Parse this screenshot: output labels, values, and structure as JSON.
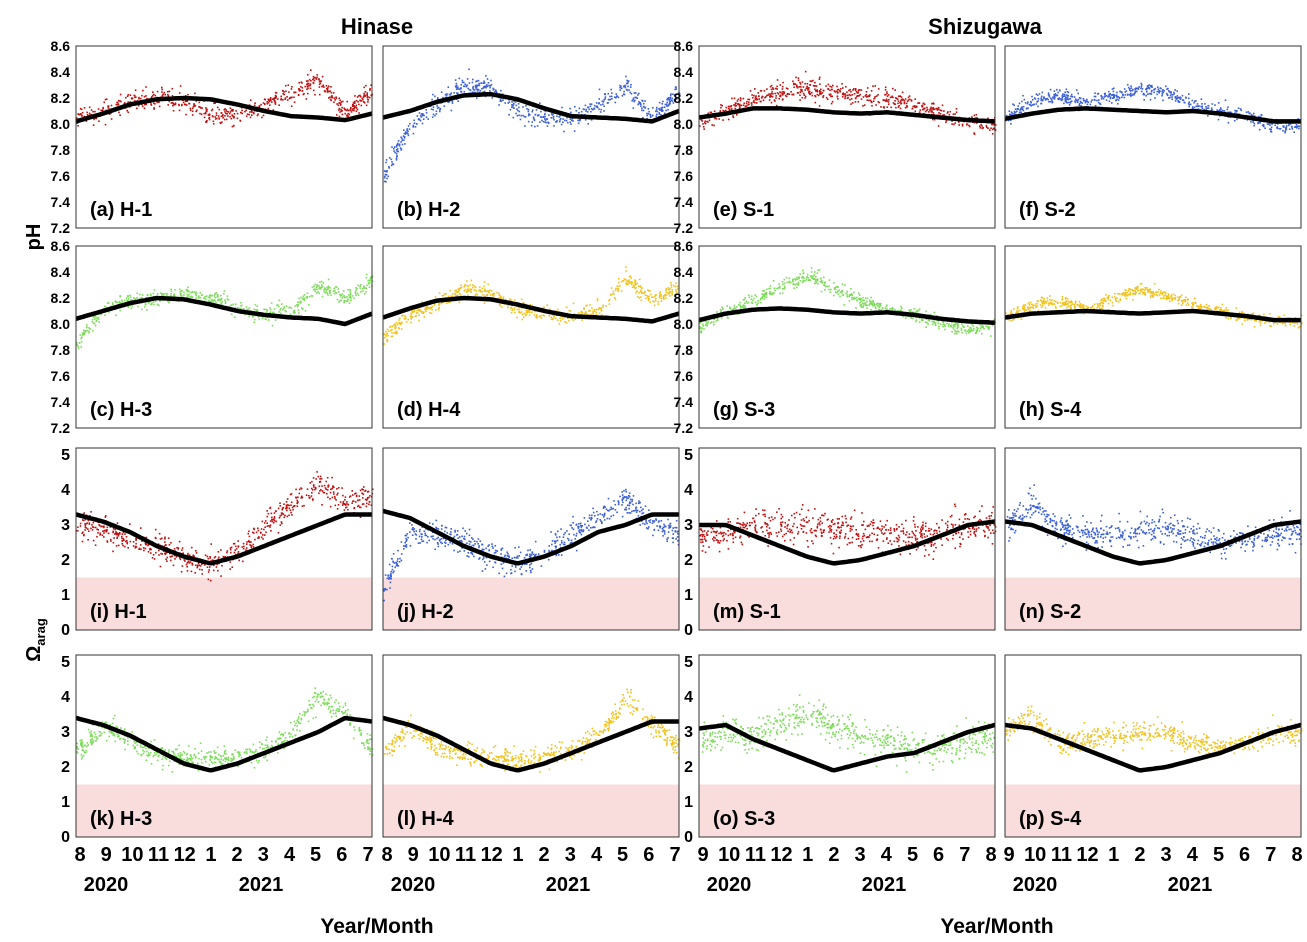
{
  "titles": {
    "hinase": "Hinase",
    "shizugawa": "Shizugawa"
  },
  "ylabels": {
    "ph": "pH",
    "omega_main": "Ω",
    "omega_sub": "arag"
  },
  "xlabel": "Year/Month",
  "colors": {
    "red": "#c01010",
    "blue": "#3a5fd8",
    "green": "#7ddc5a",
    "yellow": "#f2c21a",
    "black": "#000000",
    "undersat": "#f9dcdc"
  },
  "chart_data": {
    "type": "scatter",
    "ph_ylim": [
      7.2,
      8.6
    ],
    "ph_yticks": [
      "7.2",
      "7.4",
      "7.6",
      "7.8",
      "8.0",
      "8.2",
      "8.4",
      "8.6"
    ],
    "omega_ylim": [
      0,
      5.2
    ],
    "omega_yticks": [
      "0",
      "1",
      "2",
      "3",
      "4",
      "5"
    ],
    "undersaturation_threshold": 1.5,
    "hinase_xticks": {
      "months": [
        "8",
        "9",
        "10",
        "11",
        "12",
        "1",
        "2",
        "3",
        "4",
        "5",
        "6",
        "7"
      ],
      "years": [
        "2020",
        "2021"
      ]
    },
    "shizugawa_xticks": {
      "months": [
        "9",
        "10",
        "11",
        "12",
        "1",
        "2",
        "3",
        "4",
        "5",
        "6",
        "7",
        "8"
      ],
      "years": [
        "2020",
        "2021"
      ]
    },
    "panels": [
      {
        "label": "(a) H-1",
        "site": "H-1",
        "var": "pH",
        "color": "red",
        "climatology": [
          8.02,
          8.08,
          8.15,
          8.19,
          8.2,
          8.19,
          8.15,
          8.1,
          8.06,
          8.05,
          8.03,
          8.08
        ],
        "observed": [
          8.05,
          8.1,
          8.17,
          8.2,
          8.18,
          8.07,
          8.08,
          8.15,
          8.25,
          8.35,
          8.1,
          8.25
        ],
        "spread": 0.1
      },
      {
        "label": "(b) H-2",
        "site": "H-2",
        "var": "pH",
        "color": "blue",
        "climatology": [
          8.05,
          8.1,
          8.17,
          8.22,
          8.23,
          8.19,
          8.12,
          8.06,
          8.05,
          8.04,
          8.02,
          8.1
        ],
        "observed": [
          7.6,
          8.0,
          8.15,
          8.3,
          8.28,
          8.1,
          8.05,
          8.05,
          8.15,
          8.3,
          8.05,
          8.25
        ],
        "spread": 0.1
      },
      {
        "label": "(c) H-3",
        "site": "H-3",
        "var": "pH",
        "color": "green",
        "climatology": [
          8.04,
          8.1,
          8.16,
          8.2,
          8.19,
          8.15,
          8.1,
          8.07,
          8.05,
          8.04,
          8.0,
          8.08
        ],
        "observed": [
          7.85,
          8.12,
          8.18,
          8.2,
          8.24,
          8.2,
          8.12,
          8.08,
          8.1,
          8.3,
          8.2,
          8.35
        ],
        "spread": 0.08
      },
      {
        "label": "(d) H-4",
        "site": "H-4",
        "var": "pH",
        "color": "yellow",
        "climatology": [
          8.05,
          8.12,
          8.18,
          8.2,
          8.19,
          8.15,
          8.1,
          8.06,
          8.05,
          8.04,
          8.02,
          8.08
        ],
        "observed": [
          7.9,
          8.08,
          8.15,
          8.28,
          8.25,
          8.12,
          8.08,
          8.07,
          8.1,
          8.35,
          8.2,
          8.3
        ],
        "spread": 0.08
      },
      {
        "label": "(e) S-1",
        "site": "S-1",
        "var": "pH",
        "color": "red",
        "climatology": [
          8.05,
          8.08,
          8.12,
          8.12,
          8.11,
          8.09,
          8.08,
          8.09,
          8.07,
          8.05,
          8.03,
          8.02
        ],
        "observed": [
          8.02,
          8.1,
          8.2,
          8.25,
          8.28,
          8.25,
          8.22,
          8.2,
          8.15,
          8.08,
          8.02,
          8.0
        ],
        "spread": 0.1
      },
      {
        "label": "(f) S-2",
        "site": "S-2",
        "var": "pH",
        "color": "blue",
        "climatology": [
          8.04,
          8.08,
          8.11,
          8.12,
          8.11,
          8.1,
          8.09,
          8.1,
          8.08,
          8.05,
          8.02,
          8.02
        ],
        "observed": [
          8.05,
          8.18,
          8.22,
          8.18,
          8.22,
          8.28,
          8.25,
          8.15,
          8.1,
          8.06,
          8.0,
          7.98
        ],
        "spread": 0.07
      },
      {
        "label": "(g) S-3",
        "site": "S-3",
        "var": "pH",
        "color": "green",
        "climatology": [
          8.03,
          8.08,
          8.11,
          8.12,
          8.11,
          8.09,
          8.08,
          8.09,
          8.07,
          8.04,
          8.02,
          8.01
        ],
        "observed": [
          7.98,
          8.1,
          8.18,
          8.3,
          8.38,
          8.28,
          8.18,
          8.12,
          8.08,
          8.02,
          7.95,
          8.0
        ],
        "spread": 0.07
      },
      {
        "label": "(h) S-4",
        "site": "S-4",
        "var": "pH",
        "color": "yellow",
        "climatology": [
          8.05,
          8.08,
          8.09,
          8.1,
          8.09,
          8.08,
          8.09,
          8.1,
          8.08,
          8.06,
          8.03,
          8.03
        ],
        "observed": [
          8.05,
          8.15,
          8.18,
          8.12,
          8.2,
          8.28,
          8.22,
          8.15,
          8.1,
          8.05,
          8.03,
          8.02
        ],
        "spread": 0.06
      },
      {
        "label": "(i) H-1",
        "site": "H-1",
        "var": "Omega_arag",
        "color": "red",
        "climatology": [
          3.3,
          3.1,
          2.8,
          2.4,
          2.1,
          1.9,
          2.1,
          2.4,
          2.7,
          3.0,
          3.3,
          3.3
        ],
        "observed": [
          3.0,
          2.9,
          2.6,
          2.4,
          2.1,
          1.9,
          2.3,
          3.0,
          3.6,
          4.2,
          3.7,
          3.8
        ],
        "spread": 0.5
      },
      {
        "label": "(j) H-2",
        "site": "H-2",
        "var": "Omega_arag",
        "color": "blue",
        "climatology": [
          3.4,
          3.2,
          2.8,
          2.4,
          2.1,
          1.9,
          2.1,
          2.4,
          2.8,
          3.0,
          3.3,
          3.3
        ],
        "observed": [
          1.2,
          2.8,
          2.8,
          2.5,
          2.2,
          2.0,
          2.2,
          2.8,
          3.2,
          3.8,
          3.0,
          2.8
        ],
        "spread": 0.5
      },
      {
        "label": "(k) H-3",
        "site": "H-3",
        "var": "Omega_arag",
        "color": "green",
        "climatology": [
          3.4,
          3.2,
          2.9,
          2.5,
          2.1,
          1.9,
          2.1,
          2.4,
          2.7,
          3.0,
          3.4,
          3.3
        ],
        "observed": [
          2.4,
          3.2,
          2.8,
          2.4,
          2.3,
          2.2,
          2.3,
          2.5,
          3.0,
          4.0,
          3.5,
          2.5
        ],
        "spread": 0.4
      },
      {
        "label": "(l) H-4",
        "site": "H-4",
        "var": "Omega_arag",
        "color": "yellow",
        "climatology": [
          3.4,
          3.2,
          2.9,
          2.5,
          2.1,
          1.9,
          2.1,
          2.4,
          2.7,
          3.0,
          3.3,
          3.3
        ],
        "observed": [
          2.4,
          3.2,
          2.6,
          2.4,
          2.3,
          2.2,
          2.3,
          2.5,
          2.9,
          4.0,
          3.3,
          2.6
        ],
        "spread": 0.4
      },
      {
        "label": "(m) S-1",
        "site": "S-1",
        "var": "Omega_arag",
        "color": "red",
        "climatology": [
          3.0,
          3.0,
          2.7,
          2.4,
          2.1,
          1.9,
          2.0,
          2.2,
          2.4,
          2.7,
          3.0,
          3.1
        ],
        "observed": [
          2.7,
          2.8,
          3.0,
          2.9,
          3.0,
          2.9,
          2.8,
          2.8,
          2.7,
          2.8,
          3.0,
          3.0
        ],
        "spread": 0.6
      },
      {
        "label": "(n) S-2",
        "site": "S-2",
        "var": "Omega_arag",
        "color": "blue",
        "climatology": [
          3.1,
          3.0,
          2.7,
          2.4,
          2.1,
          1.9,
          2.0,
          2.2,
          2.4,
          2.7,
          3.0,
          3.1
        ],
        "observed": [
          3.0,
          3.6,
          2.9,
          2.8,
          2.7,
          2.9,
          2.9,
          2.7,
          2.5,
          2.6,
          2.8,
          2.8
        ],
        "spread": 0.5
      },
      {
        "label": "(o) S-3",
        "site": "S-3",
        "var": "Omega_arag",
        "color": "green",
        "climatology": [
          3.1,
          3.2,
          2.8,
          2.5,
          2.2,
          1.9,
          2.1,
          2.3,
          2.4,
          2.7,
          3.0,
          3.2
        ],
        "observed": [
          2.8,
          3.0,
          2.9,
          3.3,
          3.6,
          3.2,
          2.9,
          2.8,
          2.6,
          2.6,
          2.8,
          2.9
        ],
        "spread": 0.6
      },
      {
        "label": "(p) S-4",
        "site": "S-4",
        "var": "Omega_arag",
        "color": "yellow",
        "climatology": [
          3.2,
          3.1,
          2.8,
          2.5,
          2.2,
          1.9,
          2.0,
          2.2,
          2.4,
          2.7,
          3.0,
          3.2
        ],
        "observed": [
          3.0,
          3.5,
          2.7,
          2.8,
          2.9,
          3.0,
          3.0,
          2.7,
          2.6,
          2.7,
          3.0,
          3.0
        ],
        "spread": 0.4
      }
    ]
  }
}
